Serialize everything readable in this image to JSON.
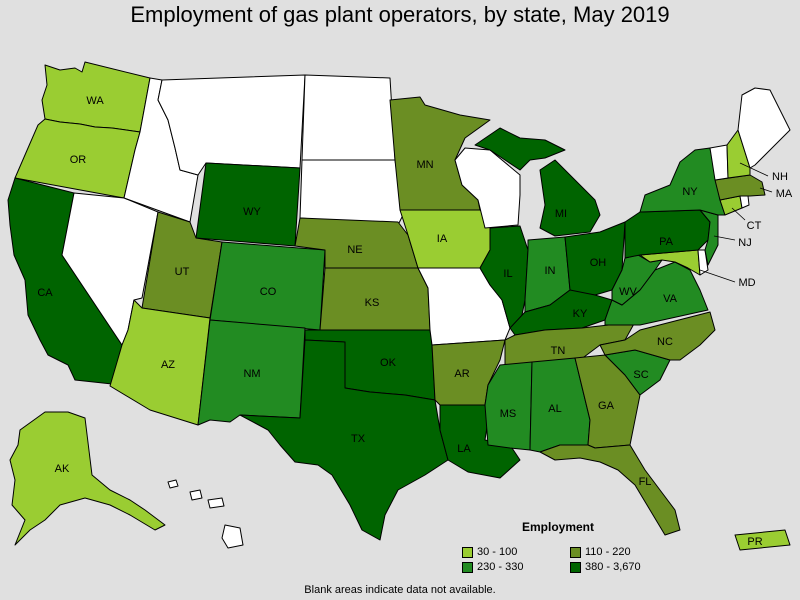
{
  "title": "Employment of gas plant operators, by state, May 2019",
  "legend": {
    "title": "Employment",
    "items": [
      {
        "label": "30 - 100",
        "color": "#9acd32"
      },
      {
        "label": "110 - 220",
        "color": "#6b8e23"
      },
      {
        "label": "230 - 330",
        "color": "#228b22"
      },
      {
        "label": "380 - 3,670",
        "color": "#006400"
      }
    ]
  },
  "footnote": "Blank areas indicate data not available.",
  "colors": {
    "no_data": "#ffffff",
    "background": "#e0e0e0"
  },
  "states": {
    "WA": {
      "label": "WA",
      "category": "30 - 100"
    },
    "OR": {
      "label": "OR",
      "category": "30 - 100"
    },
    "CA": {
      "label": "CA",
      "category": "380 - 3,670"
    },
    "ID": {
      "label": "",
      "category": null
    },
    "NV": {
      "label": "",
      "category": null
    },
    "MT": {
      "label": "",
      "category": null
    },
    "WY": {
      "label": "WY",
      "category": "380 - 3,670"
    },
    "UT": {
      "label": "UT",
      "category": "110 - 220"
    },
    "AZ": {
      "label": "AZ",
      "category": "30 - 100"
    },
    "CO": {
      "label": "CO",
      "category": "230 - 330"
    },
    "NM": {
      "label": "NM",
      "category": "230 - 330"
    },
    "ND": {
      "label": "",
      "category": null
    },
    "SD": {
      "label": "",
      "category": null
    },
    "NE": {
      "label": "NE",
      "category": "110 - 220"
    },
    "KS": {
      "label": "KS",
      "category": "110 - 220"
    },
    "OK": {
      "label": "OK",
      "category": "380 - 3,670"
    },
    "TX": {
      "label": "TX",
      "category": "380 - 3,670"
    },
    "MN": {
      "label": "MN",
      "category": "110 - 220"
    },
    "IA": {
      "label": "IA",
      "category": "30 - 100"
    },
    "MO": {
      "label": "",
      "category": null
    },
    "AR": {
      "label": "AR",
      "category": "110 - 220"
    },
    "LA": {
      "label": "LA",
      "category": "380 - 3,670"
    },
    "WI": {
      "label": "",
      "category": null
    },
    "IL": {
      "label": "IL",
      "category": "380 - 3,670"
    },
    "MI": {
      "label": "MI",
      "category": "380 - 3,670"
    },
    "IN": {
      "label": "IN",
      "category": "230 - 330"
    },
    "OH": {
      "label": "OH",
      "category": "380 - 3,670"
    },
    "KY": {
      "label": "KY",
      "category": "380 - 3,670"
    },
    "TN": {
      "label": "TN",
      "category": "110 - 220"
    },
    "MS": {
      "label": "MS",
      "category": "230 - 330"
    },
    "AL": {
      "label": "AL",
      "category": "230 - 330"
    },
    "GA": {
      "label": "GA",
      "category": "110 - 220"
    },
    "FL": {
      "label": "FL",
      "category": "110 - 220"
    },
    "SC": {
      "label": "SC",
      "category": "230 - 330"
    },
    "NC": {
      "label": "NC",
      "category": "110 - 220"
    },
    "VA": {
      "label": "VA",
      "category": "230 - 330"
    },
    "WV": {
      "label": "WV",
      "category": "230 - 330"
    },
    "MD": {
      "label": "MD",
      "category": "30 - 100"
    },
    "DE": {
      "label": "",
      "category": null
    },
    "PA": {
      "label": "PA",
      "category": "380 - 3,670"
    },
    "NJ": {
      "label": "NJ",
      "category": "230 - 330"
    },
    "NY": {
      "label": "NY",
      "category": "230 - 330"
    },
    "CT": {
      "label": "CT",
      "category": "30 - 100"
    },
    "RI": {
      "label": "",
      "category": null
    },
    "MA": {
      "label": "MA",
      "category": "110 - 220"
    },
    "VT": {
      "label": "",
      "category": null
    },
    "NH": {
      "label": "NH",
      "category": "30 - 100"
    },
    "ME": {
      "label": "",
      "category": null
    },
    "AK": {
      "label": "AK",
      "category": "30 - 100"
    },
    "HI": {
      "label": "",
      "category": null
    },
    "PR": {
      "label": "PR",
      "category": "30 - 100"
    }
  }
}
